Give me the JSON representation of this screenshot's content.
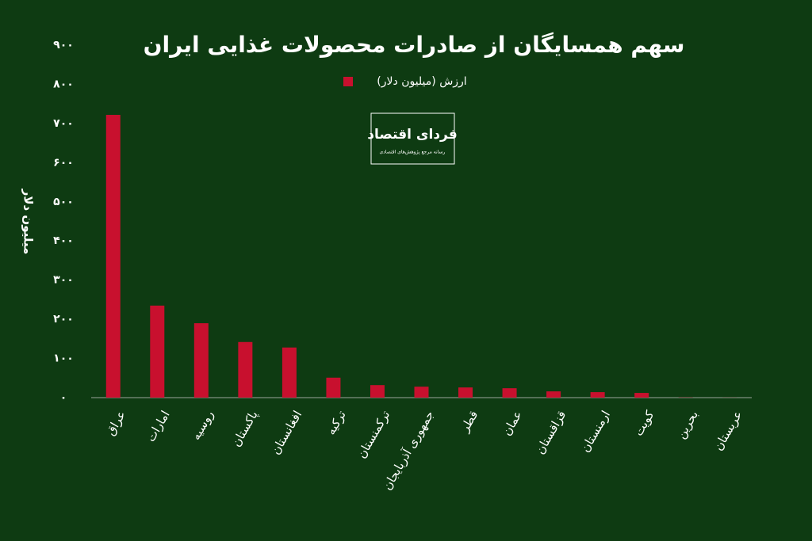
{
  "chart_data": {
    "type": "bar",
    "title": "سهم همسایگان از صادرات محصولات غذایی ایران",
    "ylabel": "میلیون دلار",
    "logo": {
      "name": "فردای اقتصاد",
      "tagline": "رسانه مرجع پژوهش‌های اقتصادی"
    },
    "categories": [
      "عراق",
      "امارات",
      "روسیه",
      "پاکستان",
      "افغانستان",
      "ترکیه",
      "ترکمنستان",
      "جمهوری آذربایجان",
      "قطر",
      "عمان",
      "قزاقستان",
      "ارمنستان",
      "کویت",
      "بحرین",
      "عربستان"
    ],
    "series": [
      {
        "name": "ارزش (میلیون دلار)",
        "color": "#c8102e",
        "values": [
          722,
          235,
          190,
          142,
          128,
          51,
          32,
          28,
          26,
          24,
          16,
          14,
          12,
          0.5,
          0.2
        ]
      }
    ],
    "ylim": [
      0,
      900
    ],
    "yticks": [
      {
        "value": 0,
        "label": "۰"
      },
      {
        "value": 100,
        "label": "۱۰۰"
      },
      {
        "value": 200,
        "label": "۲۰۰"
      },
      {
        "value": 300,
        "label": "۳۰۰"
      },
      {
        "value": 400,
        "label": "۴۰۰"
      },
      {
        "value": 500,
        "label": "۵۰۰"
      },
      {
        "value": 600,
        "label": "۶۰۰"
      },
      {
        "value": 700,
        "label": "۷۰۰"
      },
      {
        "value": 800,
        "label": "۸۰۰"
      },
      {
        "value": 900,
        "label": "۹۰۰"
      }
    ],
    "grid": false
  }
}
